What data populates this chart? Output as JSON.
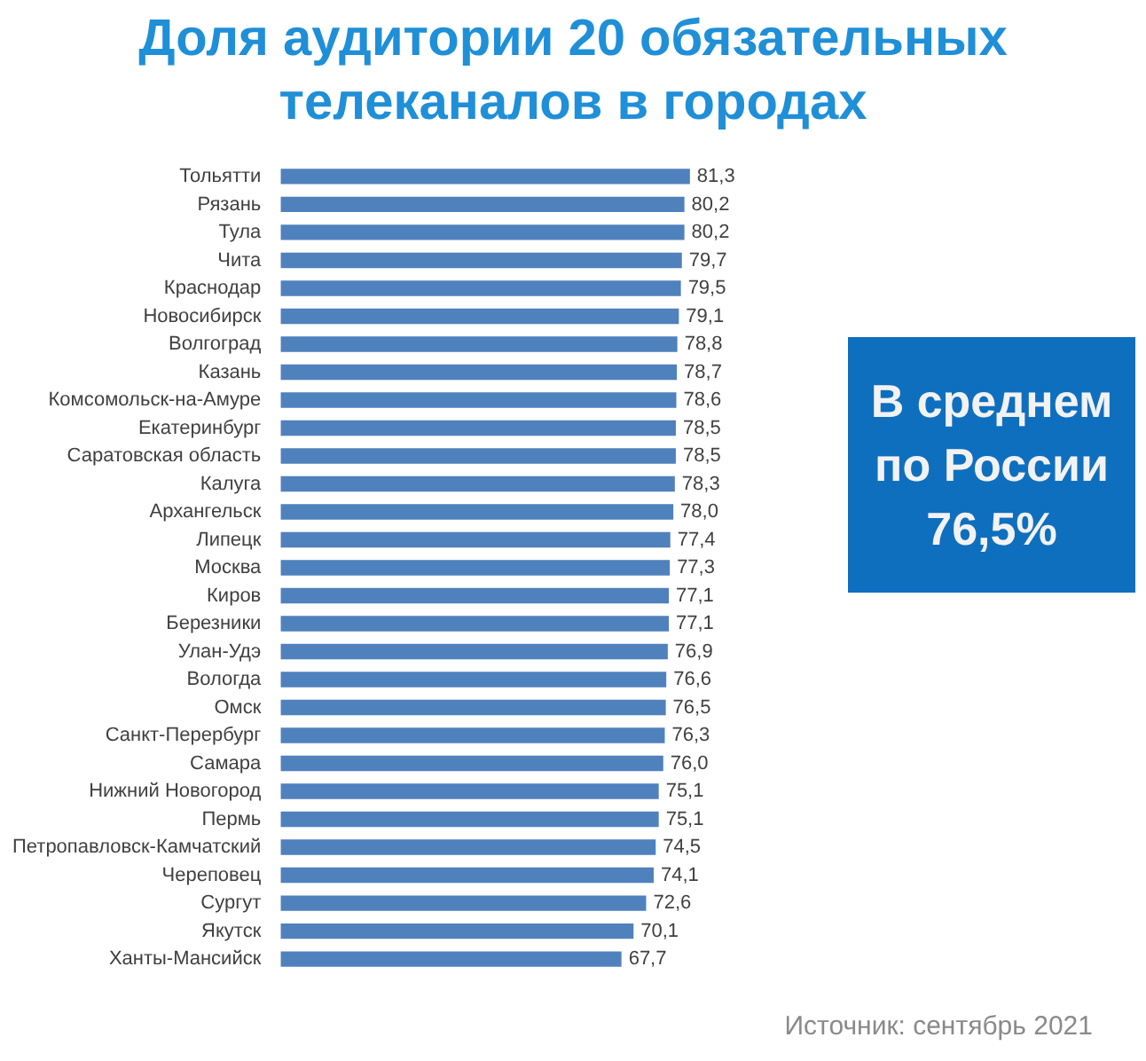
{
  "chart_data": {
    "type": "bar",
    "orientation": "horizontal",
    "title": "Доля аудитории 20 обязательных телеканалов в городах",
    "categories": [
      "Тольятти",
      "Рязань",
      "Тула",
      "Чита",
      "Краснодар",
      "Новосибирск",
      "Волгоград",
      "Казань",
      "Комсомольск-на-Амуре",
      "Екатеринбург",
      "Саратовская область",
      "Калуга",
      "Архангельск",
      "Липецк",
      "Москва",
      "Киров",
      "Березники",
      "Улан-Удэ",
      "Вологда",
      "Омск",
      "Санкт-Перербург",
      "Самара",
      "Нижний Новогород",
      "Пермь",
      "Петропавловск-Камчатский",
      "Череповец",
      "Сургут",
      "Якутск",
      "Ханты-Мансийск"
    ],
    "values": [
      81.3,
      80.2,
      80.2,
      79.7,
      79.5,
      79.1,
      78.8,
      78.7,
      78.6,
      78.5,
      78.5,
      78.3,
      78.0,
      77.4,
      77.3,
      77.1,
      77.1,
      76.9,
      76.6,
      76.5,
      76.3,
      76.0,
      75.1,
      75.1,
      74.5,
      74.1,
      72.6,
      70.1,
      67.7
    ],
    "value_labels": [
      "81,3",
      "80,2",
      "80,2",
      "79,7",
      "79,5",
      "79,1",
      "78,8",
      "78,7",
      "78,6",
      "78,5",
      "78,5",
      "78,3",
      "78,0",
      "77,4",
      "77,3",
      "77,1",
      "77,1",
      "76,9",
      "76,6",
      "76,5",
      "76,3",
      "76,0",
      "75,1",
      "75,1",
      "74,5",
      "74,1",
      "72,6",
      "70,1",
      "67,7"
    ],
    "color": "#4f81bd",
    "annotations": [
      "В среднем по России 76,5%",
      "Источник: сентябрь 2021"
    ]
  }
}
